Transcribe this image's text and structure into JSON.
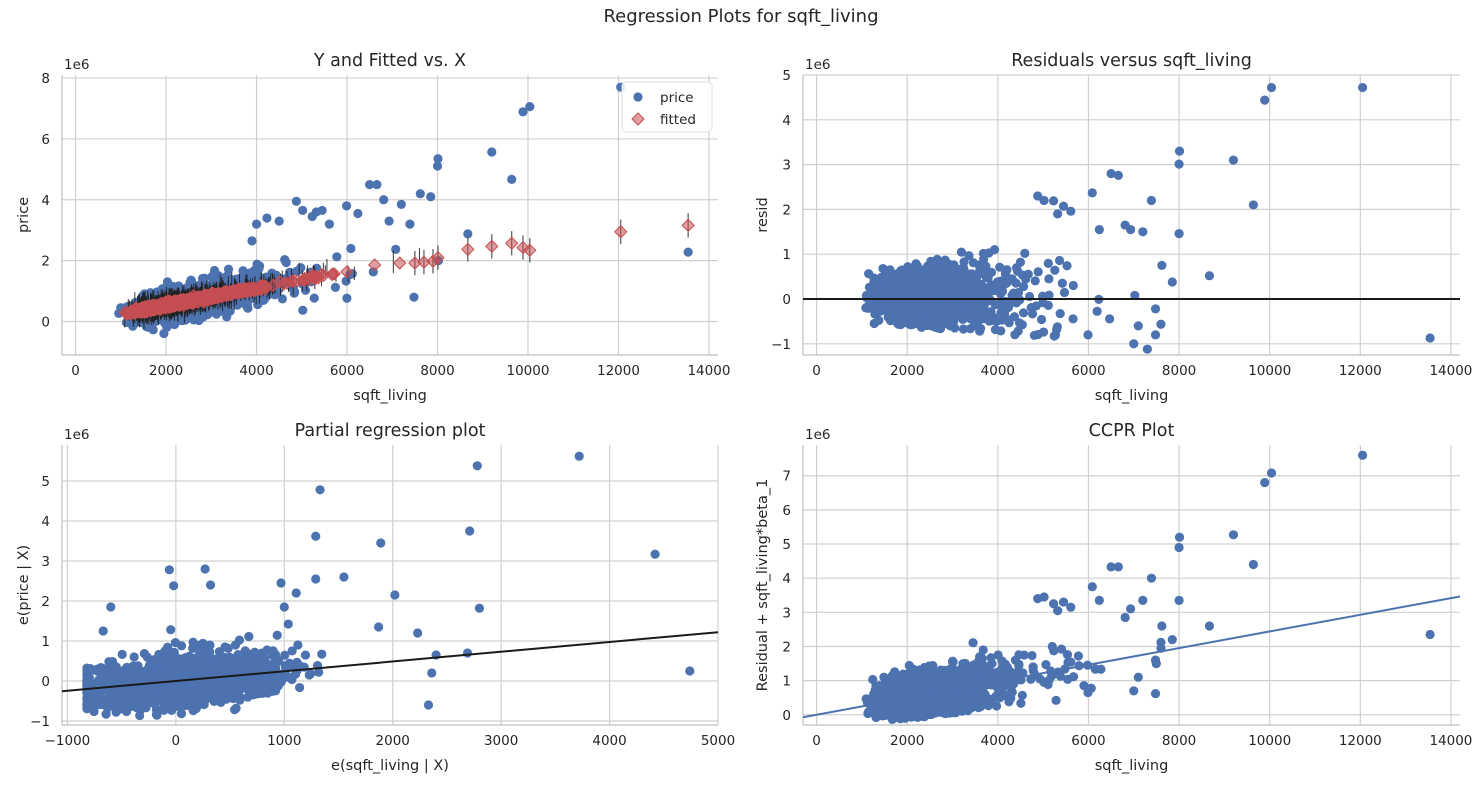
{
  "suptitle": "Regression Plots for sqft_living",
  "colors": {
    "blue": "#4c72b0",
    "red": "#c44e52",
    "black": "#1a1a1a",
    "grid": "#d0d0d0",
    "axis": "#bfbfbf"
  },
  "chart_data": [
    {
      "type": "scatter",
      "title": "Y and Fitted vs. X",
      "xlabel": "sqft_living",
      "ylabel": "price",
      "y_offset_label": "1e6",
      "xlim": [
        -300,
        14200
      ],
      "ylim": [
        -1.1,
        8.1
      ],
      "xticks": [
        0,
        2000,
        4000,
        6000,
        8000,
        10000,
        12000,
        14000
      ],
      "yticks": [
        0,
        2,
        4,
        6,
        8
      ],
      "grid": true,
      "legend": {
        "position": "top-right",
        "entries": [
          "price",
          "fitted"
        ]
      },
      "trend_samples": {
        "price": [
          [
            500,
            0.1
          ],
          [
            800,
            0.2
          ],
          [
            1000,
            0.28
          ],
          [
            1200,
            0.32
          ],
          [
            1500,
            0.4
          ],
          [
            1800,
            0.48
          ],
          [
            2000,
            0.55
          ],
          [
            2300,
            0.62
          ],
          [
            2600,
            0.7
          ],
          [
            3000,
            0.8
          ],
          [
            3300,
            0.88
          ],
          [
            3600,
            0.97
          ],
          [
            4000,
            1.1
          ],
          [
            4400,
            1.2
          ],
          [
            4800,
            1.33
          ],
          [
            5200,
            1.45
          ],
          [
            5600,
            1.58
          ],
          [
            6000,
            1.7
          ],
          [
            6400,
            1.85
          ],
          [
            7000,
            2.0
          ],
          [
            7500,
            2.1
          ]
        ]
      },
      "price_outliers": [
        [
          13540,
          2.28
        ],
        [
          12050,
          7.7
        ],
        [
          10040,
          7.06
        ],
        [
          9890,
          6.89
        ],
        [
          9640,
          4.67
        ],
        [
          9200,
          5.57
        ],
        [
          8670,
          2.88
        ],
        [
          8010,
          5.35
        ],
        [
          8000,
          5.11
        ],
        [
          8020,
          2.0
        ],
        [
          7850,
          4.1
        ],
        [
          7620,
          4.2
        ],
        [
          7480,
          0.8
        ],
        [
          7390,
          3.2
        ],
        [
          7200,
          3.85
        ],
        [
          6930,
          3.3
        ],
        [
          6810,
          4.0
        ],
        [
          6660,
          4.5
        ],
        [
          6500,
          4.5
        ],
        [
          6240,
          3.55
        ],
        [
          6085,
          2.4
        ],
        [
          5990,
          3.8
        ],
        [
          5610,
          3.2
        ],
        [
          5450,
          3.65
        ],
        [
          5320,
          3.6
        ],
        [
          5230,
          3.45
        ],
        [
          5020,
          3.65
        ],
        [
          4880,
          3.95
        ],
        [
          4500,
          3.3
        ],
        [
          4230,
          3.4
        ],
        [
          4000,
          3.2
        ],
        [
          3900,
          2.65
        ]
      ],
      "fitted_points": [
        [
          8670,
          2.37
        ],
        [
          9200,
          2.47
        ],
        [
          9640,
          2.57
        ],
        [
          9890,
          2.43
        ],
        [
          10040,
          2.34
        ],
        [
          12050,
          2.95
        ],
        [
          13540,
          3.16
        ],
        [
          8010,
          2.1
        ],
        [
          7900,
          1.98
        ],
        [
          7700,
          1.95
        ],
        [
          7500,
          1.92
        ]
      ]
    },
    {
      "type": "scatter",
      "title": "Residuals versus sqft_living",
      "xlabel": "sqft_living",
      "ylabel": "resid",
      "y_offset_label": "1e6",
      "xlim": [
        -300,
        14200
      ],
      "ylim": [
        -1.25,
        5.0
      ],
      "xticks": [
        0,
        2000,
        4000,
        6000,
        8000,
        10000,
        12000,
        14000
      ],
      "yticks": [
        -1,
        0,
        1,
        2,
        3,
        4,
        5
      ],
      "grid": true,
      "reference_line": 0,
      "outliers": [
        [
          13540,
          -0.87
        ],
        [
          12050,
          4.72
        ],
        [
          10040,
          4.72
        ],
        [
          9890,
          4.44
        ],
        [
          9640,
          2.1
        ],
        [
          9200,
          3.1
        ],
        [
          8670,
          0.52
        ],
        [
          8010,
          3.3
        ],
        [
          8000,
          3.01
        ],
        [
          8000,
          1.46
        ],
        [
          7850,
          0.38
        ],
        [
          7620,
          0.75
        ],
        [
          7480,
          -0.22
        ],
        [
          7390,
          2.2
        ],
        [
          7200,
          1.5
        ],
        [
          7100,
          -0.6
        ],
        [
          7000,
          -1.0
        ],
        [
          6930,
          1.55
        ],
        [
          6810,
          1.65
        ],
        [
          6660,
          2.76
        ],
        [
          6500,
          2.8
        ],
        [
          6240,
          1.55
        ],
        [
          6085,
          2.37
        ],
        [
          5990,
          -0.8
        ],
        [
          5610,
          1.96
        ],
        [
          5450,
          2.07
        ],
        [
          5320,
          1.9
        ],
        [
          5230,
          2.19
        ],
        [
          5020,
          2.2
        ],
        [
          4880,
          2.3
        ],
        [
          7300,
          -1.12
        ],
        [
          7480,
          -0.8
        ]
      ]
    },
    {
      "type": "scatter",
      "title": "Partial regression plot",
      "xlabel": "e(sqft_living | X)",
      "ylabel": "e(price | X)",
      "y_offset_label": "1e6",
      "xlim": [
        -1050,
        5000
      ],
      "ylim": [
        -1.1,
        5.9
      ],
      "xticks": [
        -1000,
        0,
        1000,
        2000,
        3000,
        4000,
        5000
      ],
      "yticks": [
        -1,
        0,
        1,
        2,
        3,
        4,
        5
      ],
      "grid": true,
      "fit_line": {
        "slope": 0.000244,
        "intercept": 0.0
      },
      "outliers": [
        [
          4740,
          0.25
        ],
        [
          4420,
          3.17
        ],
        [
          3720,
          5.62
        ],
        [
          2780,
          5.38
        ],
        [
          2800,
          1.82
        ],
        [
          2710,
          3.75
        ],
        [
          2690,
          0.7
        ],
        [
          2400,
          0.65
        ],
        [
          2360,
          0.2
        ],
        [
          2330,
          -0.6
        ],
        [
          2230,
          1.2
        ],
        [
          2020,
          2.15
        ],
        [
          1890,
          3.45
        ],
        [
          1870,
          1.35
        ],
        [
          1550,
          2.6
        ],
        [
          1330,
          4.78
        ],
        [
          1290,
          3.62
        ],
        [
          1290,
          2.55
        ],
        [
          1110,
          2.2
        ],
        [
          970,
          2.45
        ],
        [
          1000,
          1.85
        ],
        [
          320,
          2.4
        ],
        [
          270,
          2.8
        ],
        [
          -60,
          2.78
        ],
        [
          -20,
          2.38
        ],
        [
          -600,
          1.85
        ],
        [
          -670,
          1.25
        ],
        [
          -720,
          0.3
        ],
        [
          -800,
          -0.15
        ]
      ]
    },
    {
      "type": "scatter",
      "title": "CCPR Plot",
      "xlabel": "sqft_living",
      "ylabel": "Residual + sqft_living*beta_1",
      "y_offset_label": "1e6",
      "xlim": [
        -300,
        14200
      ],
      "ylim": [
        -0.3,
        7.9
      ],
      "xticks": [
        0,
        2000,
        4000,
        6000,
        8000,
        10000,
        12000,
        14000
      ],
      "yticks": [
        0,
        1,
        2,
        3,
        4,
        5,
        6,
        7
      ],
      "grid": true,
      "fit_line": {
        "slope": 0.000244,
        "intercept": 0.0
      },
      "outliers": [
        [
          13540,
          2.35
        ],
        [
          12050,
          7.6
        ],
        [
          10040,
          7.08
        ],
        [
          9890,
          6.8
        ],
        [
          9640,
          4.4
        ],
        [
          9200,
          5.27
        ],
        [
          8670,
          2.6
        ],
        [
          8010,
          5.2
        ],
        [
          8000,
          4.9
        ],
        [
          8000,
          3.35
        ],
        [
          7850,
          2.2
        ],
        [
          7620,
          2.6
        ],
        [
          7480,
          1.6
        ],
        [
          7390,
          4.0
        ],
        [
          7200,
          3.35
        ],
        [
          7100,
          1.1
        ],
        [
          7000,
          0.7
        ],
        [
          6930,
          3.1
        ],
        [
          6810,
          2.85
        ],
        [
          6660,
          4.33
        ],
        [
          6500,
          4.33
        ],
        [
          6240,
          3.35
        ],
        [
          6085,
          3.75
        ],
        [
          5990,
          0.65
        ],
        [
          5610,
          3.15
        ],
        [
          5450,
          3.3
        ],
        [
          5320,
          3.05
        ],
        [
          5230,
          3.25
        ],
        [
          5020,
          3.45
        ],
        [
          4880,
          3.4
        ],
        [
          7480,
          0.62
        ]
      ]
    }
  ]
}
